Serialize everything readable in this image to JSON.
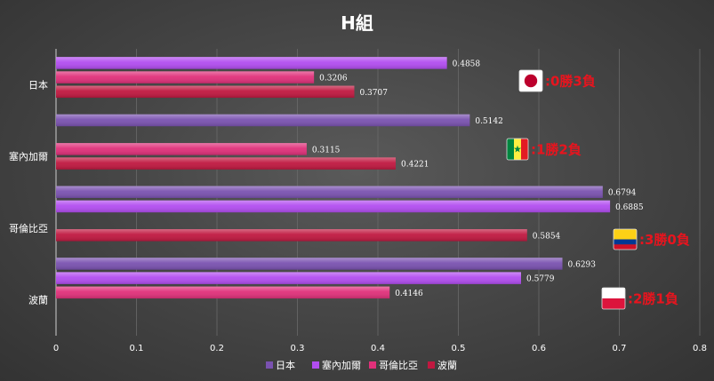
{
  "chart_data": {
    "type": "bar",
    "orientation": "horizontal",
    "title": "H組",
    "categories": [
      "日本",
      "塞內加爾",
      "哥倫比亞",
      "波蘭"
    ],
    "series": [
      {
        "name": "日本",
        "color": "#7a52b0",
        "values": [
          null,
          0.5142,
          0.6794,
          0.6293
        ]
      },
      {
        "name": "塞內加爾",
        "color": "#b24df0",
        "values": [
          0.4858,
          null,
          0.6885,
          0.5779
        ]
      },
      {
        "name": "哥倫比亞",
        "color": "#e0307a",
        "values": [
          0.3206,
          0.3115,
          null,
          0.4146
        ]
      },
      {
        "name": "波蘭",
        "color": "#c01840",
        "values": [
          0.3707,
          0.4221,
          0.5854,
          null
        ]
      }
    ],
    "data_labels": [
      [
        "",
        "0.4858",
        "0.3206",
        "0.3707"
      ],
      [
        "0.5142",
        "",
        "0.3115",
        "0.4221"
      ],
      [
        "0.6794",
        "0.6885",
        "",
        "0.5854"
      ],
      [
        "0.6293",
        "0.5779",
        "0.4146",
        ""
      ]
    ],
    "xlim": [
      0,
      0.8
    ],
    "xticks": [
      "0",
      "0.1",
      "0.2",
      "0.3",
      "0.4",
      "0.5",
      "0.6",
      "0.7",
      "0.8"
    ],
    "xtick_values": [
      0,
      0.1,
      0.2,
      0.3,
      0.4,
      0.5,
      0.6,
      0.7,
      0.8
    ],
    "grid": true,
    "legend_position": "bottom",
    "annotations": [
      {
        "category": "日本",
        "flag": "japan",
        "text": ":0勝3負"
      },
      {
        "category": "塞內加爾",
        "flag": "senegal",
        "text": ":1勝2負"
      },
      {
        "category": "哥倫比亞",
        "flag": "colombia",
        "text": ":3勝0負"
      },
      {
        "category": "波蘭",
        "flag": "poland",
        "text": ":2勝1負"
      }
    ],
    "annotation_color": "#e8141e"
  }
}
